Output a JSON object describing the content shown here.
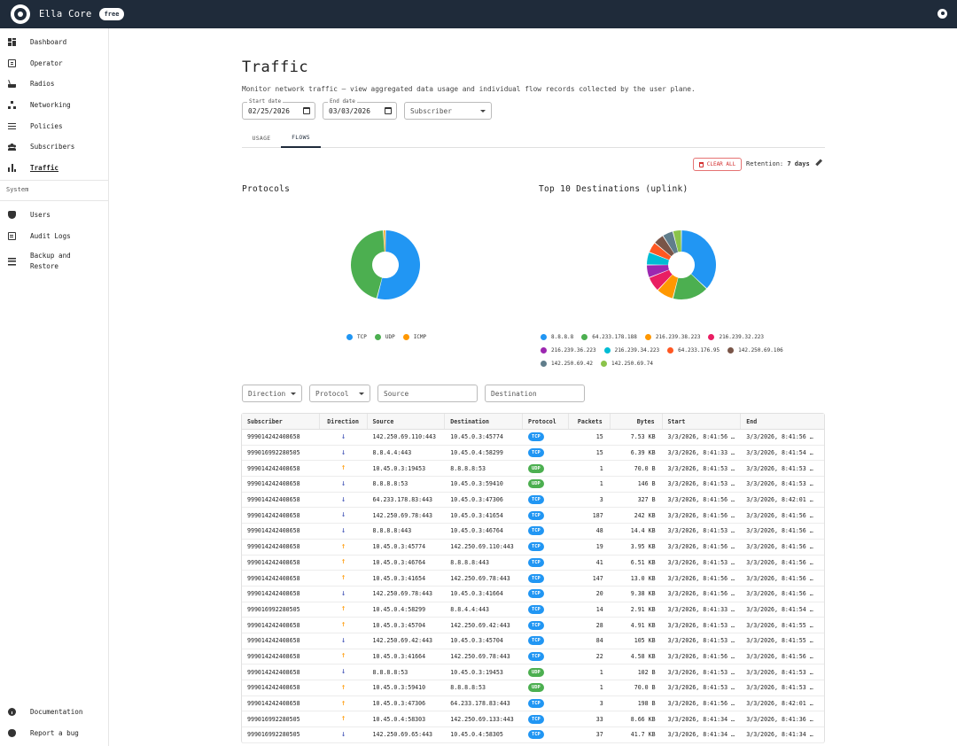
{
  "app": {
    "name": "Ella Core",
    "plan": "free"
  },
  "sidebar": {
    "items": [
      {
        "label": "Dashboard",
        "icon": "dashboard-icon"
      },
      {
        "label": "Operator",
        "icon": "operator-icon"
      },
      {
        "label": "Radios",
        "icon": "radio-icon"
      },
      {
        "label": "Networking",
        "icon": "networking-icon"
      },
      {
        "label": "Policies",
        "icon": "policies-icon"
      },
      {
        "label": "Subscribers",
        "icon": "subscribers-icon"
      },
      {
        "label": "Traffic",
        "icon": "traffic-icon",
        "active": true
      }
    ],
    "system_label": "System",
    "system_items": [
      {
        "label": "Users",
        "icon": "users-icon"
      },
      {
        "label": "Audit Logs",
        "icon": "audit-logs-icon"
      },
      {
        "label": "Backup and Restore",
        "label_line1": "Backup and",
        "label_line2": "Restore",
        "icon": "backup-icon"
      }
    ],
    "bottom_items": [
      {
        "label": "Documentation",
        "icon": "info-icon"
      },
      {
        "label": "Report a bug",
        "icon": "bug-icon"
      }
    ]
  },
  "page": {
    "title": "Traffic",
    "description": "Monitor network traffic — view aggregated data usage and individual flow records collected by the user plane."
  },
  "filters": {
    "start_label": "Start date",
    "start_value": "02/25/2026",
    "end_label": "End date",
    "end_value": "03/03/2026",
    "subscriber_placeholder": "Subscriber"
  },
  "tabs": [
    {
      "label": "USAGE"
    },
    {
      "label": "FLOWS",
      "active": true
    }
  ],
  "actions": {
    "clear_all": "CLEAR ALL",
    "retention_label": "Retention:",
    "retention_value": "7 days"
  },
  "colors": {
    "tcp": "#2196f3",
    "udp": "#4caf50",
    "icmp": "#ff9800",
    "topbar": "#1f2b3a"
  },
  "charts": {
    "protocols": {
      "title": "Protocols",
      "legend": [
        {
          "name": "TCP",
          "color": "#2196f3"
        },
        {
          "name": "UDP",
          "color": "#4caf50"
        },
        {
          "name": "ICMP",
          "color": "#ff9800"
        }
      ]
    },
    "destinations": {
      "title": "Top 10 Destinations (uplink)",
      "legend": [
        {
          "name": "8.8.8.8",
          "color": "#2196f3"
        },
        {
          "name": "64.233.178.188",
          "color": "#4caf50"
        },
        {
          "name": "216.239.38.223",
          "color": "#ff9800"
        },
        {
          "name": "216.239.32.223",
          "color": "#e91e63"
        },
        {
          "name": "216.239.36.223",
          "color": "#9c27b0"
        },
        {
          "name": "216.239.34.223",
          "color": "#00bcd4"
        },
        {
          "name": "64.233.176.95",
          "color": "#ff5722"
        },
        {
          "name": "142.250.69.106",
          "color": "#795548"
        },
        {
          "name": "142.250.69.42",
          "color": "#607d8b"
        },
        {
          "name": "142.250.69.74",
          "color": "#8bc34a"
        }
      ]
    }
  },
  "chart_data": [
    {
      "type": "pie",
      "title": "Protocols",
      "categories": [
        "TCP",
        "UDP",
        "ICMP"
      ],
      "values": [
        54,
        45,
        1
      ]
    },
    {
      "type": "pie",
      "title": "Top 10 Destinations (uplink)",
      "categories": [
        "8.8.8.8",
        "64.233.178.188",
        "216.239.38.223",
        "216.239.32.223",
        "216.239.36.223",
        "216.239.34.223",
        "64.233.176.95",
        "142.250.69.106",
        "142.250.69.42",
        "142.250.69.74"
      ],
      "values": [
        37,
        17,
        8,
        7,
        6,
        6,
        5,
        5,
        5,
        4
      ]
    }
  ],
  "table_filters": {
    "direction": "Direction",
    "protocol": "Protocol",
    "source": "Source",
    "destination": "Destination"
  },
  "table": {
    "columns": [
      "Subscriber",
      "Direction",
      "Source",
      "Destination",
      "Protocol",
      "Packets",
      "Bytes",
      "Start",
      "End"
    ],
    "rows": [
      {
        "subscriber": "999014242408658",
        "direction": "down",
        "source": "142.250.69.110:443",
        "destination": "10.45.0.3:45774",
        "protocol": "TCP",
        "packets": "15",
        "bytes": "7.53 KB",
        "start": "3/3/2026, 8:41:56 …",
        "end": "3/3/2026, 8:41:56 …"
      },
      {
        "subscriber": "999016992280505",
        "direction": "down",
        "source": "8.8.4.4:443",
        "destination": "10.45.0.4:58299",
        "protocol": "TCP",
        "packets": "15",
        "bytes": "6.39 KB",
        "start": "3/3/2026, 8:41:33 …",
        "end": "3/3/2026, 8:41:54 …"
      },
      {
        "subscriber": "999014242408658",
        "direction": "up",
        "source": "10.45.0.3:19453",
        "destination": "8.8.8.8:53",
        "protocol": "UDP",
        "packets": "1",
        "bytes": "70.0 B",
        "start": "3/3/2026, 8:41:53 …",
        "end": "3/3/2026, 8:41:53 …"
      },
      {
        "subscriber": "999014242408658",
        "direction": "down",
        "source": "8.8.8.8:53",
        "destination": "10.45.0.3:59410",
        "protocol": "UDP",
        "packets": "1",
        "bytes": "146 B",
        "start": "3/3/2026, 8:41:53 …",
        "end": "3/3/2026, 8:41:53 …"
      },
      {
        "subscriber": "999014242408658",
        "direction": "down",
        "source": "64.233.178.83:443",
        "destination": "10.45.0.3:47306",
        "protocol": "TCP",
        "packets": "3",
        "bytes": "327 B",
        "start": "3/3/2026, 8:41:56 …",
        "end": "3/3/2026, 8:42:01 …"
      },
      {
        "subscriber": "999014242408658",
        "direction": "down",
        "source": "142.250.69.78:443",
        "destination": "10.45.0.3:41654",
        "protocol": "TCP",
        "packets": "187",
        "bytes": "242 KB",
        "start": "3/3/2026, 8:41:56 …",
        "end": "3/3/2026, 8:41:56 …"
      },
      {
        "subscriber": "999014242408658",
        "direction": "down",
        "source": "8.8.8.8:443",
        "destination": "10.45.0.3:46764",
        "protocol": "TCP",
        "packets": "48",
        "bytes": "14.4 KB",
        "start": "3/3/2026, 8:41:53 …",
        "end": "3/3/2026, 8:41:56 …"
      },
      {
        "subscriber": "999014242408658",
        "direction": "up",
        "source": "10.45.0.3:45774",
        "destination": "142.250.69.110:443",
        "protocol": "TCP",
        "packets": "19",
        "bytes": "3.95 KB",
        "start": "3/3/2026, 8:41:56 …",
        "end": "3/3/2026, 8:41:56 …"
      },
      {
        "subscriber": "999014242408658",
        "direction": "up",
        "source": "10.45.0.3:46764",
        "destination": "8.8.8.8:443",
        "protocol": "TCP",
        "packets": "41",
        "bytes": "6.51 KB",
        "start": "3/3/2026, 8:41:53 …",
        "end": "3/3/2026, 8:41:56 …"
      },
      {
        "subscriber": "999014242408658",
        "direction": "up",
        "source": "10.45.0.3:41654",
        "destination": "142.250.69.78:443",
        "protocol": "TCP",
        "packets": "147",
        "bytes": "13.0 KB",
        "start": "3/3/2026, 8:41:56 …",
        "end": "3/3/2026, 8:41:56 …"
      },
      {
        "subscriber": "999014242408658",
        "direction": "down",
        "source": "142.250.69.78:443",
        "destination": "10.45.0.3:41664",
        "protocol": "TCP",
        "packets": "20",
        "bytes": "9.38 KB",
        "start": "3/3/2026, 8:41:56 …",
        "end": "3/3/2026, 8:41:56 …"
      },
      {
        "subscriber": "999016992280505",
        "direction": "up",
        "source": "10.45.0.4:58299",
        "destination": "8.8.4.4:443",
        "protocol": "TCP",
        "packets": "14",
        "bytes": "2.91 KB",
        "start": "3/3/2026, 8:41:33 …",
        "end": "3/3/2026, 8:41:54 …"
      },
      {
        "subscriber": "999014242408658",
        "direction": "up",
        "source": "10.45.0.3:45704",
        "destination": "142.250.69.42:443",
        "protocol": "TCP",
        "packets": "28",
        "bytes": "4.91 KB",
        "start": "3/3/2026, 8:41:53 …",
        "end": "3/3/2026, 8:41:55 …"
      },
      {
        "subscriber": "999014242408658",
        "direction": "down",
        "source": "142.250.69.42:443",
        "destination": "10.45.0.3:45704",
        "protocol": "TCP",
        "packets": "84",
        "bytes": "105 KB",
        "start": "3/3/2026, 8:41:53 …",
        "end": "3/3/2026, 8:41:55 …"
      },
      {
        "subscriber": "999014242408658",
        "direction": "up",
        "source": "10.45.0.3:41664",
        "destination": "142.250.69.78:443",
        "protocol": "TCP",
        "packets": "22",
        "bytes": "4.58 KB",
        "start": "3/3/2026, 8:41:56 …",
        "end": "3/3/2026, 8:41:56 …"
      },
      {
        "subscriber": "999014242408658",
        "direction": "down",
        "source": "8.8.8.8:53",
        "destination": "10.45.0.3:19453",
        "protocol": "UDP",
        "packets": "1",
        "bytes": "102 B",
        "start": "3/3/2026, 8:41:53 …",
        "end": "3/3/2026, 8:41:53 …"
      },
      {
        "subscriber": "999014242408658",
        "direction": "up",
        "source": "10.45.0.3:59410",
        "destination": "8.8.8.8:53",
        "protocol": "UDP",
        "packets": "1",
        "bytes": "70.0 B",
        "start": "3/3/2026, 8:41:53 …",
        "end": "3/3/2026, 8:41:53 …"
      },
      {
        "subscriber": "999014242408658",
        "direction": "up",
        "source": "10.45.0.3:47306",
        "destination": "64.233.178.83:443",
        "protocol": "TCP",
        "packets": "3",
        "bytes": "198 B",
        "start": "3/3/2026, 8:41:56 …",
        "end": "3/3/2026, 8:42:01 …"
      },
      {
        "subscriber": "999016992280505",
        "direction": "up",
        "source": "10.45.0.4:58303",
        "destination": "142.250.69.133:443",
        "protocol": "TCP",
        "packets": "33",
        "bytes": "8.66 KB",
        "start": "3/3/2026, 8:41:34 …",
        "end": "3/3/2026, 8:41:36 …"
      },
      {
        "subscriber": "999016992280505",
        "direction": "down",
        "source": "142.250.69.65:443",
        "destination": "10.45.0.4:58305",
        "protocol": "TCP",
        "packets": "37",
        "bytes": "41.7 KB",
        "start": "3/3/2026, 8:41:34 …",
        "end": "3/3/2026, 8:41:34 …"
      }
    ]
  }
}
